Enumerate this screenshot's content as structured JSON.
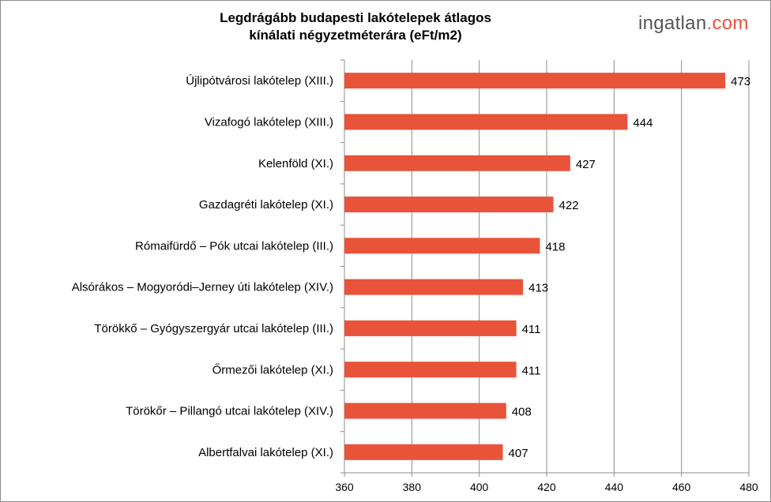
{
  "chart_data": {
    "type": "bar",
    "orientation": "horizontal",
    "title": "Legdrágább budapesti lakótelepek átlagos kinálati négyzetméterára (eFt/m2)",
    "title_lines": [
      "Legdrágább budapesti lakótelepek átlagos",
      "kínálati négyzetméterára (eFt/m2)"
    ],
    "categories": [
      "Újlipótvárosi lakótelep (XIII.)",
      "Vizafogó lakótelep (XIII.)",
      "Kelenföld (XI.)",
      "Gazdagréti lakótelep (XI.)",
      "Rómaifürdő – Pók utcai lakótelep (III.)",
      "Alsórákos – Mogyoródi–Jerney úti lakótelep (XIV.)",
      "Törökkő – Gyógyszergyár utcai lakótelep (III.)",
      "Őrmezői lakótelep (XI.)",
      "Törökőr – Pillangó utcai lakótelep (XIV.)",
      "Albertfalvai lakótelep (XI.)"
    ],
    "values": [
      473,
      444,
      427,
      422,
      418,
      413,
      411,
      411,
      408,
      407
    ],
    "xlim": [
      360,
      480
    ],
    "xticks": [
      360,
      380,
      400,
      420,
      440,
      460,
      480
    ],
    "xlabel": "",
    "ylabel": "",
    "grid": "vertical",
    "data_labels": true,
    "bar_color": "#e8533a"
  },
  "logo": {
    "main": "ingatlan",
    "suffix": ".com",
    "suffix_color": "#e8533a"
  }
}
